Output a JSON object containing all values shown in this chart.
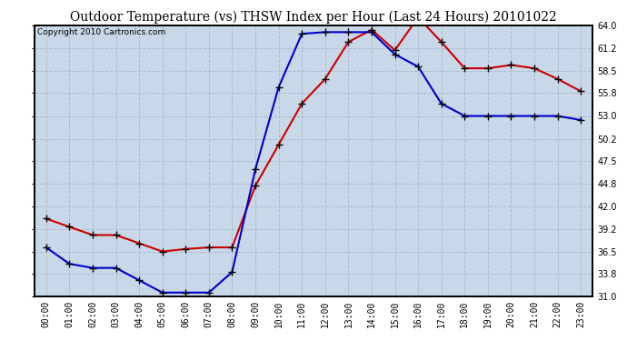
{
  "title": "Outdoor Temperature (vs) THSW Index per Hour (Last 24 Hours) 20101022",
  "copyright": "Copyright 2010 Cartronics.com",
  "hours": [
    "00:00",
    "01:00",
    "02:00",
    "03:00",
    "04:00",
    "05:00",
    "06:00",
    "07:00",
    "08:00",
    "09:00",
    "10:00",
    "11:00",
    "12:00",
    "13:00",
    "14:00",
    "15:00",
    "16:00",
    "17:00",
    "18:00",
    "19:00",
    "20:00",
    "21:00",
    "22:00",
    "23:00"
  ],
  "outdoor_temp": [
    40.5,
    39.5,
    38.5,
    38.5,
    37.5,
    36.5,
    36.8,
    37.0,
    37.0,
    44.5,
    49.5,
    54.5,
    57.5,
    62.0,
    63.5,
    61.0,
    65.0,
    62.0,
    58.8,
    58.8,
    59.2,
    58.8,
    57.5,
    56.0
  ],
  "thsw_index": [
    37.0,
    35.0,
    34.5,
    34.5,
    33.0,
    31.5,
    31.5,
    31.5,
    34.0,
    46.5,
    56.5,
    63.0,
    63.2,
    63.2,
    63.2,
    60.5,
    59.0,
    54.5,
    53.0,
    53.0,
    53.0,
    53.0,
    53.0,
    52.5
  ],
  "temp_color": "#cc0000",
  "thsw_color": "#0000cc",
  "ylim_min": 31.0,
  "ylim_max": 64.0,
  "yticks": [
    31.0,
    33.8,
    36.5,
    39.2,
    42.0,
    44.8,
    47.5,
    50.2,
    53.0,
    55.8,
    58.5,
    61.2,
    64.0
  ],
  "bg_color": "#ffffff",
  "plot_bg_color": "#c8d8e8",
  "grid_color": "#aabbcc",
  "title_fontsize": 10,
  "copyright_fontsize": 6.5,
  "tick_fontsize": 7,
  "marker": "+",
  "marker_color": "#000000",
  "marker_size": 6,
  "linewidth": 1.5
}
